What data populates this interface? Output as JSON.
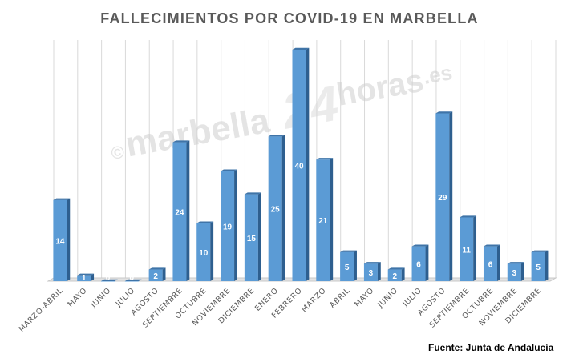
{
  "chart_data": {
    "type": "bar",
    "title": "FALLECIMIENTOS POR COVID-19 EN MARBELLA",
    "categories": [
      "MARZO-ABRIL",
      "MAYO",
      "JUNIO",
      "JULIO",
      "AGOSTO",
      "SEPTIEMBRE",
      "OCTUBRE",
      "NOVIEMBRE",
      "DICIEMBRE",
      "ENERO",
      "FEBRERO",
      "MARZO",
      "ABRIL",
      "MAYO",
      "JUNIO",
      "JULIO",
      "AGOSTO",
      "SEPTIEMBRE",
      "OCTUBRE",
      "NOVIEMBRE",
      "DICIEMBRE"
    ],
    "values": [
      14,
      1,
      0,
      0,
      2,
      24,
      10,
      19,
      15,
      25,
      40,
      21,
      5,
      3,
      2,
      6,
      29,
      11,
      6,
      3,
      5
    ],
    "ylim": [
      0,
      40
    ],
    "grid": true,
    "bar_color": "#5b9bd5",
    "bar_side_color": "#2e5f8f",
    "bar_top_color": "#3f74a8",
    "grid_color": "#d9d9d9"
  },
  "watermark": {
    "copyright": "©",
    "brand": "marbella",
    "number": "24",
    "suffix": "horas",
    "tld": ".es"
  },
  "source": "Fuente: Junta de Andalucía"
}
